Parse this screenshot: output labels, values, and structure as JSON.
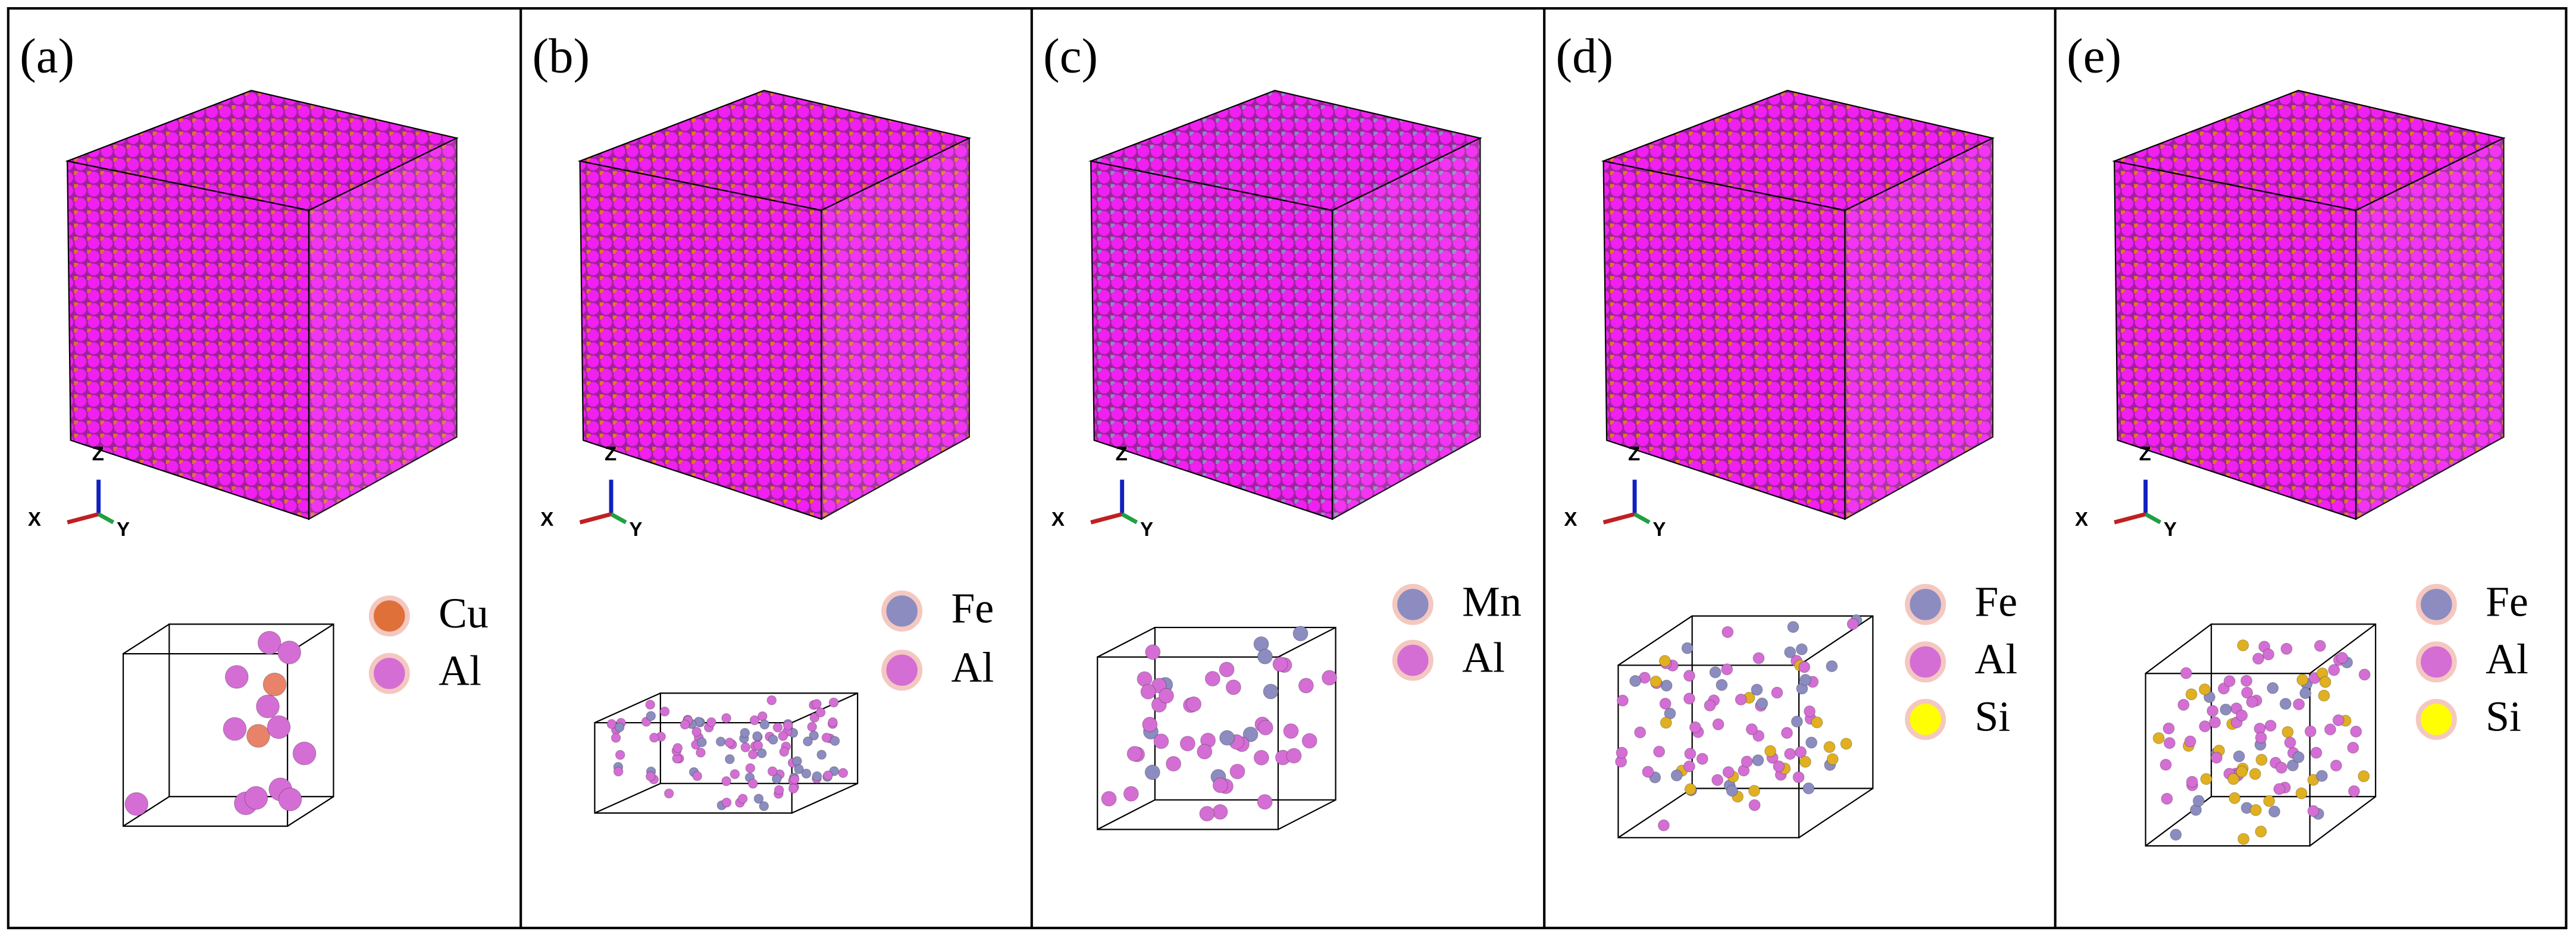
{
  "panels": [
    {
      "label": "(a)",
      "axes": {
        "x": "X",
        "y": "Y",
        "z": "Z"
      },
      "legend": [
        {
          "element": "Cu",
          "color": "#e0703a"
        },
        {
          "element": "Al",
          "color": "#d46ed4"
        }
      ]
    },
    {
      "label": "(b)",
      "axes": {
        "x": "X",
        "y": "Y",
        "z": "Z"
      },
      "legend": [
        {
          "element": "Fe",
          "color": "#8c8cc0"
        },
        {
          "element": "Al",
          "color": "#d46ed4"
        }
      ]
    },
    {
      "label": "(c)",
      "axes": {
        "x": "X",
        "y": "Y",
        "z": "Z"
      },
      "legend": [
        {
          "element": "Mn",
          "color": "#8c8cc0"
        },
        {
          "element": "Al",
          "color": "#d46ed4"
        }
      ]
    },
    {
      "label": "(d)",
      "axes": {
        "x": "X",
        "y": "Y",
        "z": "Z"
      },
      "legend": [
        {
          "element": "Fe",
          "color": "#8c8cc0"
        },
        {
          "element": "Al",
          "color": "#d46ed4"
        },
        {
          "element": "Si",
          "color": "#ffff00"
        }
      ]
    },
    {
      "label": "(e)",
      "axes": {
        "x": "X",
        "y": "Y",
        "z": "Z"
      },
      "legend": [
        {
          "element": "Fe",
          "color": "#8c8cc0"
        },
        {
          "element": "Al",
          "color": "#d46ed4"
        },
        {
          "element": "Si",
          "color": "#ffff00"
        }
      ]
    }
  ]
}
